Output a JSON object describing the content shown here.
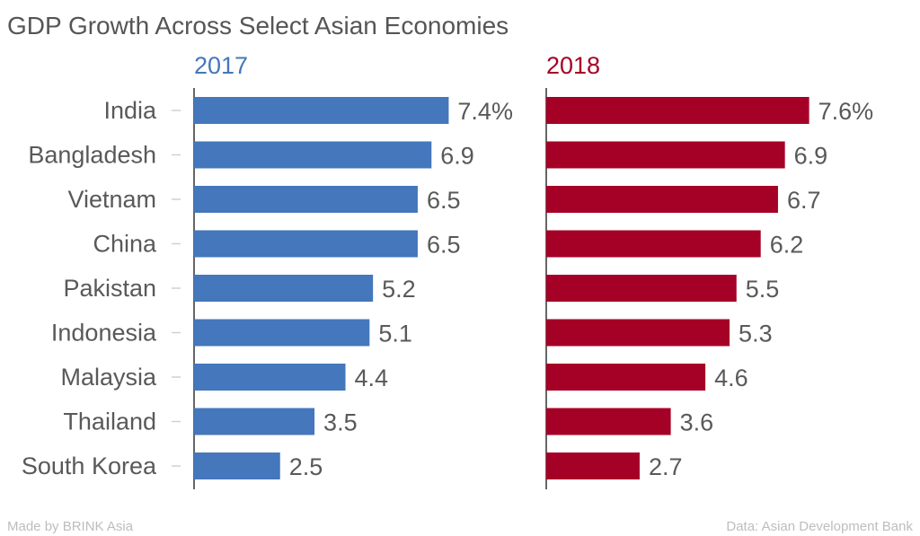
{
  "chart_data": {
    "type": "bar",
    "orientation": "horizontal",
    "title": "GDP Growth Across Select Asian Economies",
    "categories": [
      "India",
      "Bangladesh",
      "Vietnam",
      "China",
      "Pakistan",
      "Indonesia",
      "Malaysia",
      "Thailand",
      "South Korea"
    ],
    "series": [
      {
        "name": "2017",
        "color": "#4477bb",
        "values": [
          7.4,
          6.9,
          6.5,
          6.5,
          5.2,
          5.1,
          4.4,
          3.5,
          2.5
        ],
        "labels": [
          "7.4%",
          "6.9",
          "6.5",
          "6.5",
          "5.2",
          "5.1",
          "4.4",
          "3.5",
          "2.5"
        ]
      },
      {
        "name": "2018",
        "color": "#a50026",
        "values": [
          7.6,
          6.9,
          6.7,
          6.2,
          5.5,
          5.3,
          4.6,
          3.6,
          2.7
        ],
        "labels": [
          "7.6%",
          "6.9",
          "6.7",
          "6.2",
          "5.5",
          "5.3",
          "4.6",
          "3.6",
          "2.7"
        ]
      }
    ],
    "xlim": [
      0,
      8
    ],
    "grid": false,
    "layout": "small-multiples"
  },
  "footer": {
    "credit": "Made by BRINK Asia",
    "source": "Data: Asian Development Bank"
  }
}
